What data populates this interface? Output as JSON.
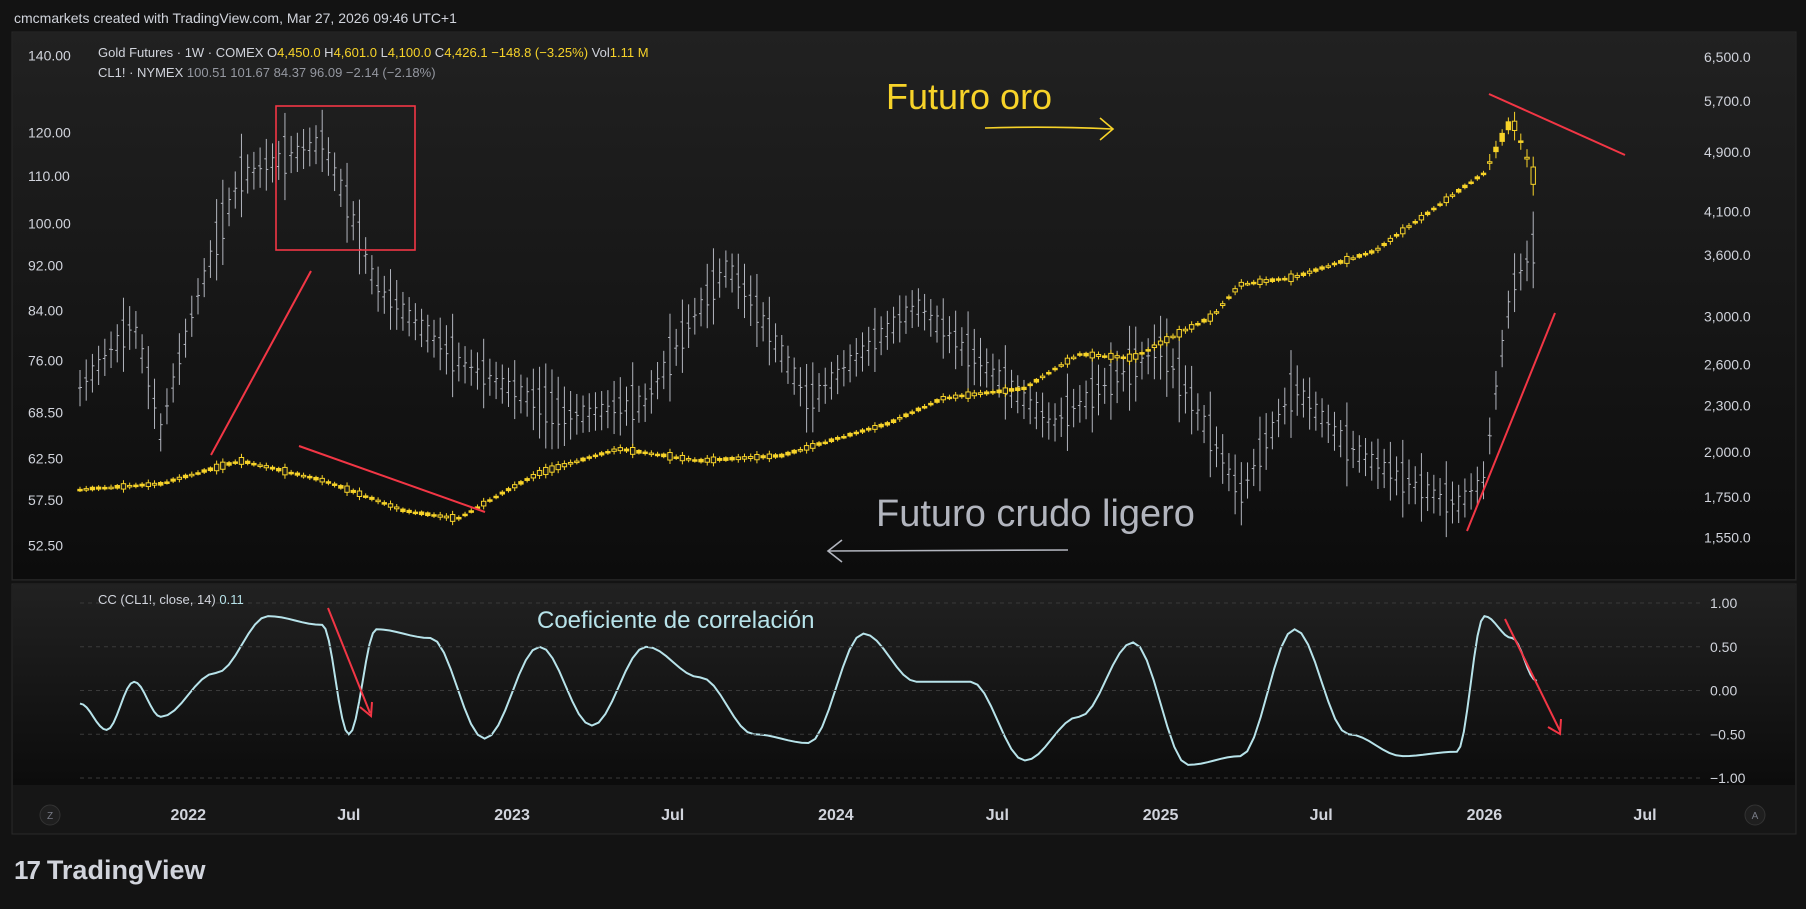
{
  "attribution": "cmcmarkets created with TradingView.com, Mar 27, 2026 09:46 UTC+1",
  "logo_text": "TradingView",
  "header": {
    "line1_name": "Gold Futures · 1W · COMEX",
    "line1_o_label": "O",
    "line1_o": "4,450.0",
    "line1_h_label": "H",
    "line1_h": "4,601.0",
    "line1_l_label": "L",
    "line1_l": "4,100.0",
    "line1_c_label": "C",
    "line1_c": "4,426.1",
    "line1_chg": "−148.8 (−3.25%)",
    "line1_vol_label": "Vol",
    "line1_vol": "1.11 M",
    "line2_name": "CL1! · NYMEX",
    "line2_values": "100.51  101.67  84.37  96.09  −2.14 (−2.18%)"
  },
  "indicator": {
    "label": "CC (CL1!, close, 14)",
    "value": "0.11"
  },
  "annotations": {
    "gold": "Futuro oro",
    "crude": "Futuro crudo ligero",
    "corr": "Coeficiente de correlación"
  },
  "colors": {
    "gold": "#f7d329",
    "crude": "#b2b5be",
    "corr": "#b7e3ea",
    "annotation_red": "#f23645",
    "gold_text": "#f7d329",
    "corr_text": "#b7e3ea"
  },
  "corner_labels": {
    "left": "Z",
    "right": "A"
  },
  "chart_data": {
    "type": "line",
    "x_axis": {
      "ticks": [
        "2022",
        "Jul",
        "2023",
        "Jul",
        "2024",
        "Jul",
        "2025",
        "Jul",
        "2026",
        "Jul"
      ],
      "range": [
        "2021-09",
        "2026-09"
      ]
    },
    "left_axis": {
      "series": "CL1!",
      "scale": "log",
      "ticks": [
        "140.00",
        "120.00",
        "110.00",
        "100.00",
        "92.00",
        "84.00",
        "76.00",
        "68.50",
        "62.50",
        "57.50",
        "52.50"
      ]
    },
    "right_axis": {
      "series": "Gold Futures",
      "scale": "log",
      "ticks": [
        "6,500.0",
        "5,700.0",
        "4,900.0",
        "4,100.0",
        "3,600.0",
        "3,000.0",
        "2,600.0",
        "2,300.0",
        "2,000.0",
        "1,750.0",
        "1,550.0"
      ]
    },
    "indicator_axis": {
      "ticks": [
        "1.00",
        "0.50",
        "0.00",
        "−0.50",
        "−1.00"
      ],
      "ylim": [
        -1,
        1
      ]
    },
    "series": [
      {
        "name": "Gold Futures",
        "x": [
          "2021-09",
          "2021-12",
          "2022-03",
          "2022-06",
          "2022-09",
          "2022-11",
          "2023-02",
          "2023-05",
          "2023-08",
          "2023-11",
          "2024-03",
          "2024-05",
          "2024-08",
          "2024-10",
          "2024-12",
          "2025-03",
          "2025-04",
          "2025-06",
          "2025-09",
          "2025-11",
          "2026-01",
          "2026-02",
          "2026-03"
        ],
        "values": [
          1790,
          1820,
          1950,
          1840,
          1680,
          1640,
          1880,
          2020,
          1950,
          1980,
          2180,
          2350,
          2420,
          2680,
          2650,
          3000,
          3300,
          3370,
          3650,
          4100,
          4600,
          5400,
          4426
        ]
      },
      {
        "name": "CL1!",
        "x": [
          "2021-09",
          "2021-11",
          "2021-12",
          "2022-03",
          "2022-06",
          "2022-08",
          "2022-11",
          "2023-03",
          "2023-06",
          "2023-09",
          "2023-12",
          "2024-04",
          "2024-06",
          "2024-09",
          "2025-01",
          "2025-04",
          "2025-06",
          "2025-08",
          "2025-10",
          "2025-12",
          "2026-01",
          "2026-02",
          "2026-03"
        ],
        "values": [
          72,
          82,
          66,
          110,
          118,
          88,
          76,
          68,
          70,
          92,
          70,
          85,
          77,
          67,
          78,
          58,
          72,
          64,
          60,
          57,
          60,
          88,
          96
        ]
      },
      {
        "name": "CC (CL1!, close, 14)",
        "x": [
          "2021-09",
          "2021-10",
          "2021-11",
          "2021-12",
          "2022-02",
          "2022-04",
          "2022-06",
          "2022-07",
          "2022-08",
          "2022-10",
          "2022-12",
          "2023-02",
          "2023-04",
          "2023-06",
          "2023-08",
          "2023-10",
          "2023-12",
          "2024-02",
          "2024-04",
          "2024-06",
          "2024-08",
          "2024-10",
          "2024-12",
          "2025-02",
          "2025-04",
          "2025-06",
          "2025-08",
          "2025-10",
          "2025-12",
          "2026-01",
          "2026-02",
          "2026-03"
        ],
        "values": [
          -0.15,
          -0.45,
          0.1,
          -0.3,
          0.2,
          0.85,
          0.75,
          -0.5,
          0.7,
          0.6,
          -0.55,
          0.5,
          -0.4,
          0.5,
          0.15,
          -0.5,
          -0.6,
          0.65,
          0.1,
          0.1,
          -0.8,
          -0.3,
          0.55,
          -0.85,
          -0.75,
          0.7,
          -0.5,
          -0.75,
          -0.7,
          0.85,
          0.6,
          0.11
        ]
      }
    ]
  }
}
